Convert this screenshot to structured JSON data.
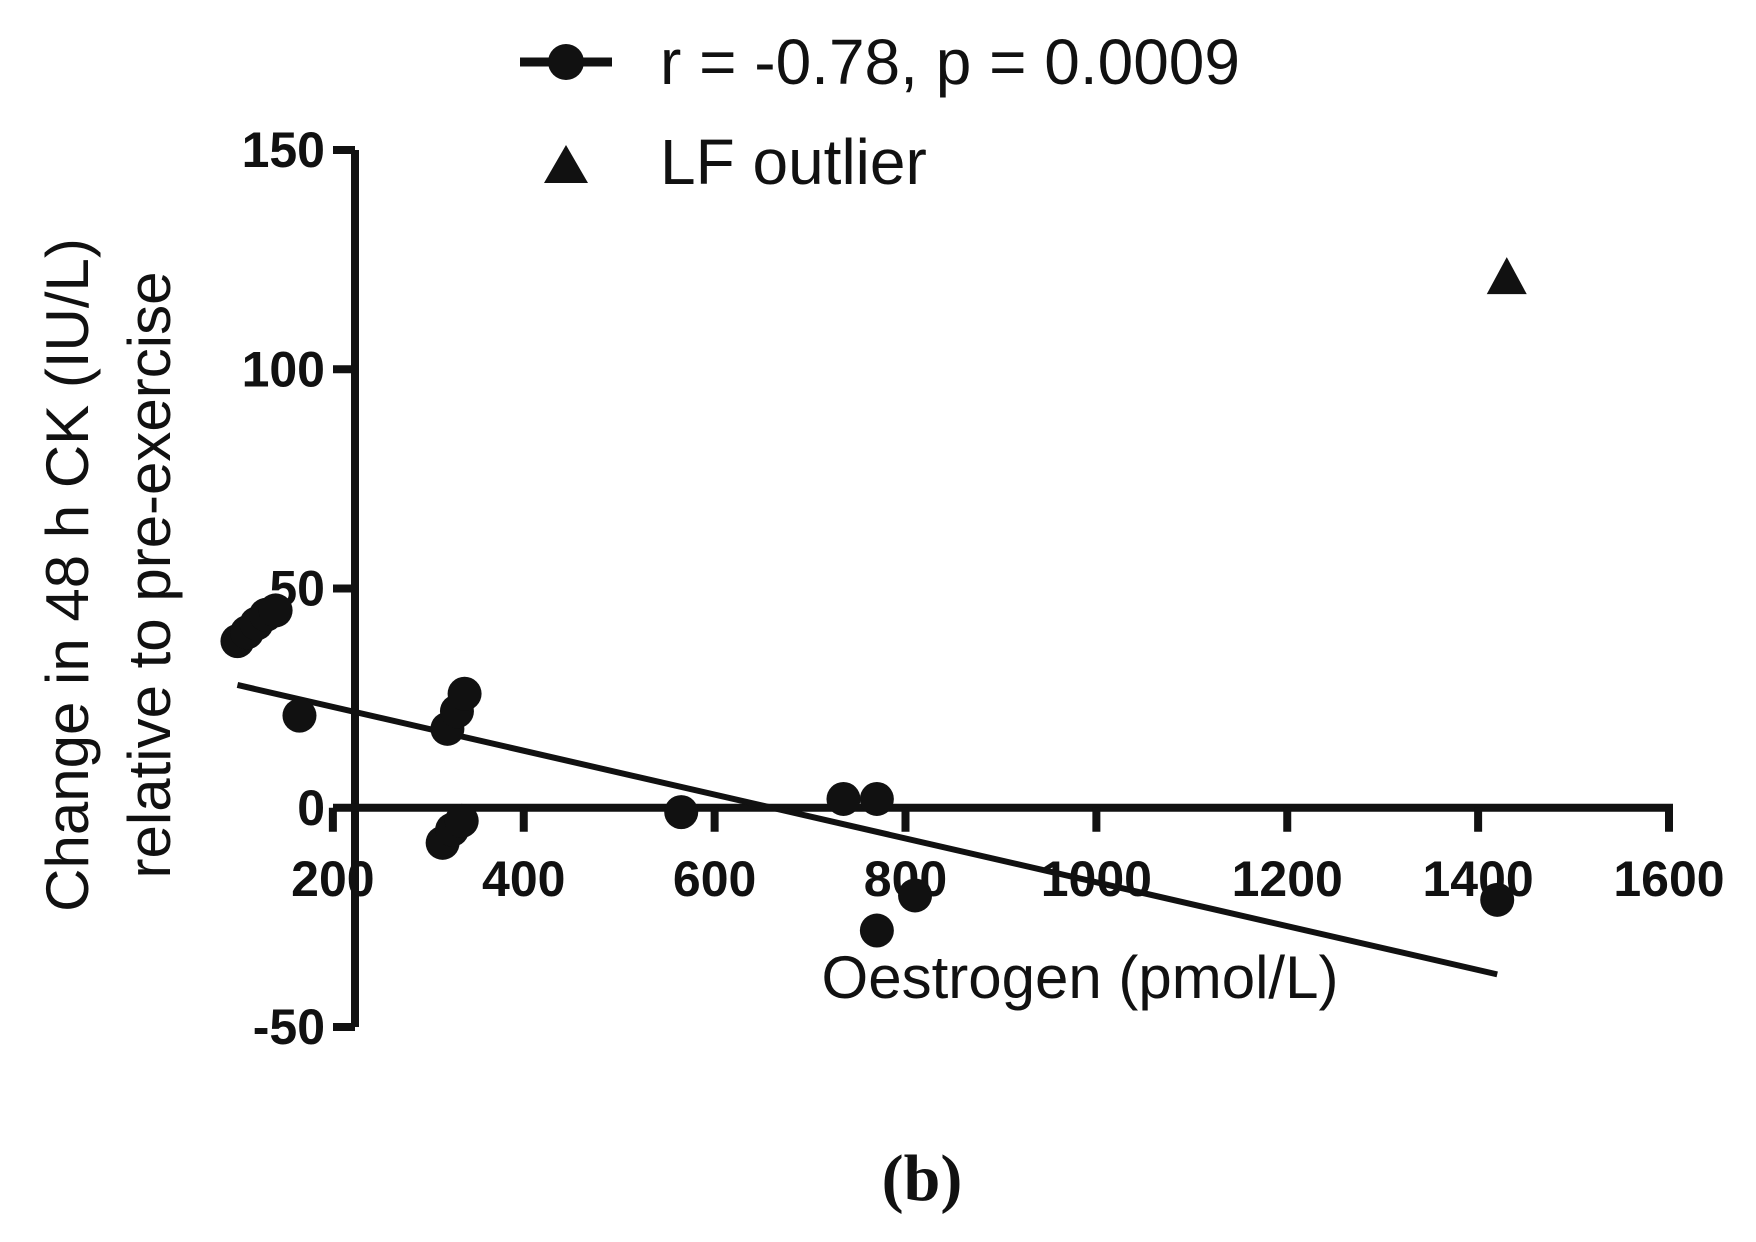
{
  "chart_data": {
    "type": "scatter",
    "xlabel": "Oestrogen (pmol/L)",
    "ylabel_line1": "Change in 48 h CK (IU/L)",
    "ylabel_line2": "relative to pre-exercise",
    "xlim": [
      0,
      1600
    ],
    "ylim": [
      -50,
      150
    ],
    "x_ticks": [
      200,
      400,
      600,
      800,
      1000,
      1200,
      1400,
      1600
    ],
    "y_ticks": [
      -50,
      0,
      50,
      100,
      150
    ],
    "series": [
      {
        "name": "r = -0.78, p = 0.0009",
        "marker": "circle",
        "points": [
          {
            "x": 100,
            "y": 38
          },
          {
            "x": 110,
            "y": 40
          },
          {
            "x": 120,
            "y": 42
          },
          {
            "x": 130,
            "y": 44
          },
          {
            "x": 140,
            "y": 45
          },
          {
            "x": 165,
            "y": 21
          },
          {
            "x": 315,
            "y": -8
          },
          {
            "x": 325,
            "y": -5
          },
          {
            "x": 335,
            "y": -3
          },
          {
            "x": 320,
            "y": 18
          },
          {
            "x": 330,
            "y": 22
          },
          {
            "x": 338,
            "y": 26
          },
          {
            "x": 565,
            "y": -1
          },
          {
            "x": 735,
            "y": 2
          },
          {
            "x": 770,
            "y": 2
          },
          {
            "x": 770,
            "y": -28
          },
          {
            "x": 810,
            "y": -20
          },
          {
            "x": 1420,
            "y": -21
          }
        ],
        "fit_line": {
          "x": [
            100,
            1420
          ],
          "y": [
            28,
            -38
          ]
        }
      },
      {
        "name": "LF outlier",
        "marker": "triangle",
        "points": [
          {
            "x": 1430,
            "y": 121
          }
        ]
      }
    ]
  },
  "caption": "(b)",
  "colors": {
    "ink": "#111111",
    "background": "#ffffff"
  }
}
